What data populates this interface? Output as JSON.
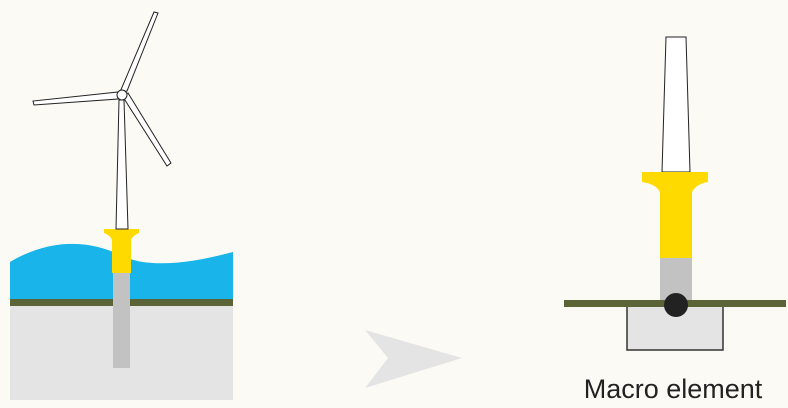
{
  "caption": "Macro element"
}
